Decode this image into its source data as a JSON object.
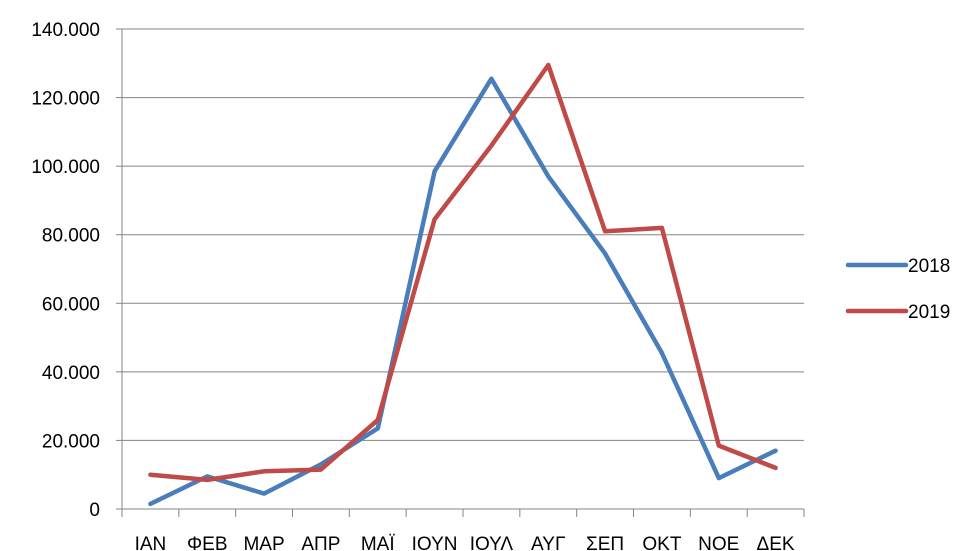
{
  "chart_data": {
    "type": "line",
    "title": "",
    "xlabel": "",
    "ylabel": "",
    "categories": [
      "ΙΑΝ",
      "ΦΕΒ",
      "ΜΑΡ",
      "ΑΠΡ",
      "ΜΑΪ",
      "ΙΟΥΝ",
      "ΙΟΥΛ",
      "ΑΥΓ",
      "ΣΕΠ",
      "ΟΚΤ",
      "ΝΟΕ",
      "ΔΕΚ"
    ],
    "series": [
      {
        "name": "2018",
        "color": "#4a7ebb",
        "values": [
          1500,
          9500,
          4500,
          13000,
          23500,
          98500,
          125500,
          97000,
          74500,
          45500,
          9000,
          17000
        ]
      },
      {
        "name": "2019",
        "color": "#be4b48",
        "values": [
          10000,
          8500,
          11000,
          11500,
          26000,
          84500,
          106000,
          129500,
          81000,
          82000,
          18500,
          12000
        ]
      }
    ],
    "ylim": [
      0,
      140000
    ],
    "yticks": [
      0,
      20000,
      40000,
      60000,
      80000,
      100000,
      120000,
      140000
    ],
    "ytick_labels": [
      "0",
      "20.000",
      "40.000",
      "60.000",
      "80.000",
      "100.000",
      "120.000",
      "140.000"
    ],
    "grid": true,
    "legend_position": "right"
  }
}
